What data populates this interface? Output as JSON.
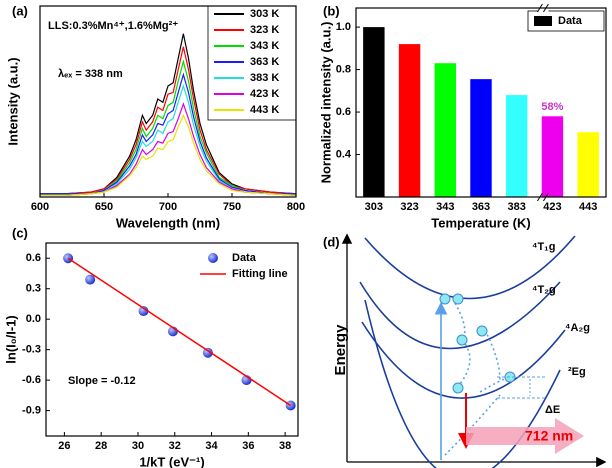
{
  "chart_data": [
    {
      "type": "line",
      "label": "(a)",
      "annotations": [
        "LLS:0.3%Mn⁴⁺,1.6%Mg²⁺",
        "λₑₓ = 338 nm"
      ],
      "xlabel": "Wavelength (nm)",
      "ylabel": "Intensity (a.u.)",
      "x": [
        600,
        620,
        640,
        650,
        660,
        670,
        675,
        680,
        683,
        688,
        692,
        696,
        700,
        704,
        708,
        712,
        716,
        720,
        725,
        730,
        740,
        750,
        760,
        780,
        800
      ],
      "xlim": [
        600,
        800
      ],
      "xticks": [
        600,
        650,
        700,
        750,
        800
      ],
      "ylim": [
        0,
        1.17
      ],
      "legend": "upper right",
      "series": [
        {
          "name": "303 K",
          "color": "#000000",
          "values": [
            0.02,
            0.02,
            0.03,
            0.05,
            0.12,
            0.25,
            0.35,
            0.5,
            0.45,
            0.5,
            0.6,
            0.58,
            0.68,
            0.7,
            0.85,
            1.0,
            0.85,
            0.65,
            0.45,
            0.32,
            0.15,
            0.08,
            0.05,
            0.03,
            0.02
          ]
        },
        {
          "name": "323 K",
          "color": "#ff0000",
          "values": [
            0.02,
            0.02,
            0.03,
            0.05,
            0.11,
            0.23,
            0.32,
            0.46,
            0.41,
            0.46,
            0.55,
            0.53,
            0.63,
            0.64,
            0.78,
            0.92,
            0.78,
            0.6,
            0.41,
            0.29,
            0.14,
            0.07,
            0.05,
            0.03,
            0.02
          ]
        },
        {
          "name": "343 K",
          "color": "#00dd00",
          "values": [
            0.02,
            0.02,
            0.02,
            0.04,
            0.1,
            0.21,
            0.29,
            0.42,
            0.37,
            0.42,
            0.5,
            0.48,
            0.56,
            0.58,
            0.71,
            0.83,
            0.71,
            0.54,
            0.37,
            0.27,
            0.12,
            0.07,
            0.04,
            0.02,
            0.02
          ]
        },
        {
          "name": "363 K",
          "color": "#1a1aff",
          "values": [
            0.02,
            0.02,
            0.02,
            0.04,
            0.09,
            0.19,
            0.26,
            0.38,
            0.34,
            0.38,
            0.45,
            0.44,
            0.51,
            0.53,
            0.64,
            0.75,
            0.64,
            0.49,
            0.34,
            0.24,
            0.11,
            0.06,
            0.04,
            0.02,
            0.02
          ]
        },
        {
          "name": "383 K",
          "color": "#22dddd",
          "values": [
            0.01,
            0.01,
            0.02,
            0.03,
            0.08,
            0.17,
            0.24,
            0.34,
            0.31,
            0.34,
            0.41,
            0.39,
            0.46,
            0.48,
            0.58,
            0.68,
            0.58,
            0.44,
            0.31,
            0.22,
            0.1,
            0.05,
            0.03,
            0.02,
            0.01
          ]
        },
        {
          "name": "423 K",
          "color": "#dd00dd",
          "values": [
            0.01,
            0.01,
            0.02,
            0.03,
            0.07,
            0.14,
            0.2,
            0.29,
            0.26,
            0.29,
            0.34,
            0.33,
            0.39,
            0.4,
            0.48,
            0.57,
            0.48,
            0.37,
            0.26,
            0.18,
            0.09,
            0.05,
            0.03,
            0.02,
            0.01
          ]
        },
        {
          "name": "443 K",
          "color": "#e6e600",
          "values": [
            0.01,
            0.01,
            0.02,
            0.03,
            0.06,
            0.13,
            0.18,
            0.25,
            0.23,
            0.25,
            0.3,
            0.29,
            0.34,
            0.35,
            0.43,
            0.5,
            0.43,
            0.33,
            0.23,
            0.16,
            0.08,
            0.04,
            0.03,
            0.02,
            0.01
          ]
        }
      ]
    },
    {
      "type": "bar",
      "label": "(b)",
      "xlabel": "Temperature (K)",
      "ylabel": "Normalized intensity (a.u.)",
      "categories": [
        "303",
        "323",
        "343",
        "363",
        "383",
        "423",
        "443"
      ],
      "values": [
        1.0,
        0.92,
        0.83,
        0.755,
        0.68,
        0.58,
        0.505
      ],
      "value_labels": [
        null,
        null,
        null,
        null,
        null,
        "58%",
        null
      ],
      "value_label_color": "#cc33cc",
      "colors": [
        "#000000",
        "#ff0000",
        "#00ff00",
        "#0000ff",
        "#33ffff",
        "#ee00ee",
        "#ffff00"
      ],
      "legend_entry": "Data",
      "legend_color": "#000000",
      "legend": "upper right",
      "ylim": [
        0.2,
        1.09
      ],
      "yticks": [
        0.4,
        0.6,
        0.8,
        {
          "value": 1,
          "label": "1.0"
        }
      ]
    },
    {
      "type": "scatter",
      "label": "(c)",
      "annotation": "Slope = -0.12",
      "xlabel": "1/kT (eV⁻¹)",
      "ylabel": "ln(I₀/I-1)",
      "xlim": [
        25,
        38.7
      ],
      "xticks": [
        26,
        28,
        30,
        32,
        34,
        36,
        38
      ],
      "ylim": [
        -1.15,
        0.75
      ],
      "yticks": [
        -0.9,
        -0.6,
        -0.3,
        {
          "value": 0,
          "label": "0.0"
        },
        0.3,
        0.6
      ],
      "legend": "upper right",
      "series": [
        {
          "name": "Data",
          "kind": "scatter",
          "color": "#2a3ee0",
          "x": [
            26.2,
            27.4,
            30.3,
            31.9,
            33.8,
            35.9,
            38.3
          ],
          "values": [
            0.6,
            0.39,
            0.08,
            -0.12,
            -0.33,
            -0.6,
            -0.85
          ]
        },
        {
          "name": "Fitting line",
          "kind": "line",
          "color": "#ff0000",
          "x": [
            26.2,
            38.3
          ],
          "values": [
            0.6,
            -0.85
          ]
        }
      ]
    }
  ],
  "diagram": {
    "label": "(d)",
    "axis_label": "Energy",
    "levels": [
      "⁴T₁g",
      "⁴T₂g",
      "⁴A₂g",
      "²Eg"
    ],
    "gap_label": "ΔE",
    "emission_label": "712 nm"
  }
}
